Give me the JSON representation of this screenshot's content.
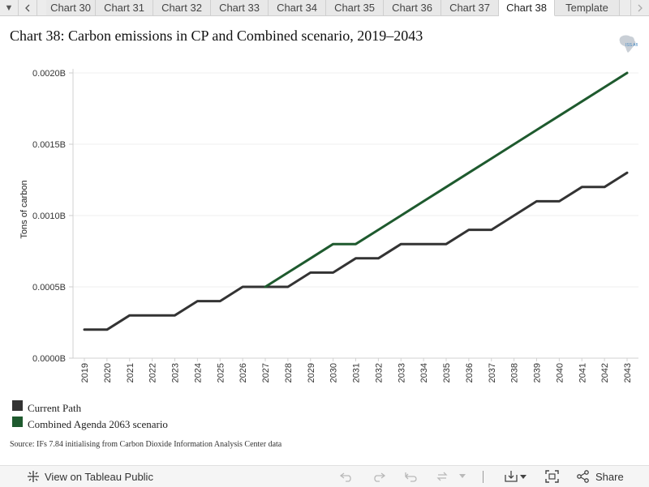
{
  "tabbar": {
    "menu_icon": "caret-down-icon",
    "prev_icon": "chevron-left-icon",
    "next_icon": "chevron-right-icon",
    "tabs": [
      {
        "label": "Chart 30",
        "active": false
      },
      {
        "label": "Chart 31",
        "active": false
      },
      {
        "label": "Chart 32",
        "active": false
      },
      {
        "label": "Chart 33",
        "active": false
      },
      {
        "label": "Chart 34",
        "active": false
      },
      {
        "label": "Chart 35",
        "active": false
      },
      {
        "label": "Chart 36",
        "active": false
      },
      {
        "label": "Chart 37",
        "active": false
      },
      {
        "label": "Chart 38",
        "active": true
      },
      {
        "label": "Template",
        "active": false
      }
    ]
  },
  "header": {
    "title": "Chart 38: Carbon emissions in CP and Combined scenario, 2019–2043",
    "logo_icon": "africa-map-logo-icon",
    "logo_text": "ISS AfI"
  },
  "chart_data": {
    "type": "line",
    "title": "Chart 38: Carbon emissions in CP and Combined scenario, 2019–2043",
    "xlabel": "",
    "ylabel": "Tons of carbon",
    "x": [
      "2019",
      "2020",
      "2021",
      "2022",
      "2023",
      "2024",
      "2025",
      "2026",
      "2027",
      "2028",
      "2029",
      "2030",
      "2031",
      "2032",
      "2033",
      "2034",
      "2035",
      "2036",
      "2037",
      "2038",
      "2039",
      "2040",
      "2041",
      "2042",
      "2043"
    ],
    "ylim": [
      0,
      0.002
    ],
    "yticks": [
      {
        "value": 0,
        "label": "0.0000B"
      },
      {
        "value": 0.0005,
        "label": "0.0005B"
      },
      {
        "value": 0.001,
        "label": "0.0010B"
      },
      {
        "value": 0.0015,
        "label": "0.0015B"
      },
      {
        "value": 0.002,
        "label": "0.0020B"
      }
    ],
    "grid": true,
    "legend_position": "bottom-left",
    "series": [
      {
        "name": "Current Path",
        "color": "#333333",
        "values": [
          0.0002,
          0.0002,
          0.0003,
          0.0003,
          0.0003,
          0.0004,
          0.0004,
          0.0005,
          0.0005,
          0.0005,
          0.0006,
          0.0006,
          0.0007,
          0.0007,
          0.0008,
          0.0008,
          0.0008,
          0.0009,
          0.0009,
          0.001,
          0.0011,
          0.0011,
          0.0012,
          0.0012,
          0.0013
        ]
      },
      {
        "name": "Combined Agenda 2063 scenario",
        "color": "#1e5a2e",
        "values": [
          null,
          null,
          null,
          null,
          null,
          null,
          null,
          null,
          0.0005,
          0.0006,
          0.0007,
          0.0008,
          0.0008,
          0.0009,
          0.001,
          0.0011,
          0.0012,
          0.0013,
          0.0014,
          0.0015,
          0.0016,
          0.0017,
          0.0018,
          0.0019,
          0.002
        ]
      }
    ]
  },
  "legend": {
    "items": [
      {
        "label": "Current Path",
        "color": "#333333"
      },
      {
        "label": "Combined Agenda 2063 scenario",
        "color": "#1e5a2e"
      }
    ]
  },
  "source": "Source: IFs 7.84 initialising from Carbon Dioxide Information Analysis Center data",
  "toolbar": {
    "view_label": "View on Tableau Public",
    "view_icon": "tableau-logo-icon",
    "undo_icon": "undo-icon",
    "redo_icon": "redo-icon",
    "revert_icon": "revert-icon",
    "refresh_icon": "refresh-icon",
    "pause_icon": "caret-down-icon",
    "download_icon": "download-icon",
    "fullscreen_icon": "fullscreen-icon",
    "share_label": "Share",
    "share_icon": "share-icon"
  }
}
